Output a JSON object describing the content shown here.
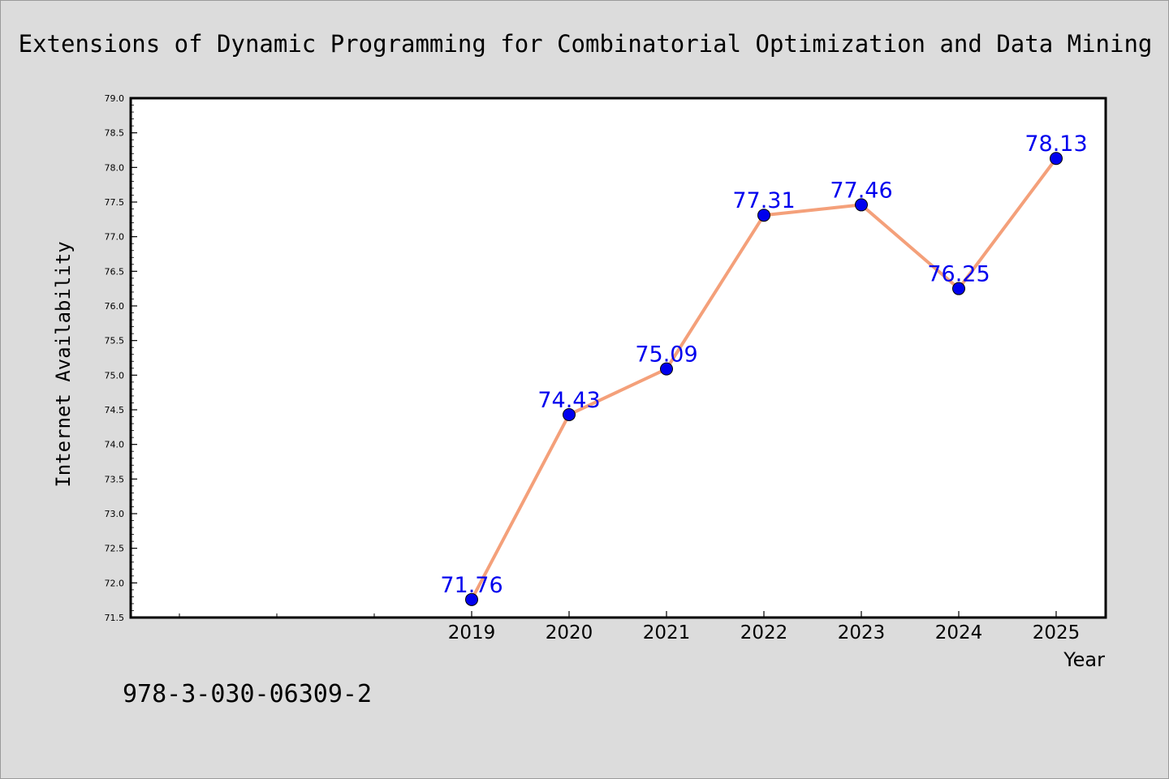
{
  "chart_data": {
    "type": "line",
    "title": "Extensions of Dynamic Programming for Combinatorial Optimization and Data Mining",
    "xlabel": "Year",
    "ylabel": "Internet Availability",
    "x": [
      "2019",
      "2020",
      "2021",
      "2022",
      "2023",
      "2024",
      "2025"
    ],
    "series": [
      {
        "values": [
          71.76,
          74.43,
          75.09,
          77.31,
          77.46,
          76.25,
          78.13
        ],
        "labels": [
          "71.76",
          "74.43",
          "75.09",
          "77.31",
          "77.46",
          "76.25",
          "78.13"
        ],
        "line_color": "#f4a07a",
        "marker_color": "#0000ee"
      }
    ],
    "ylim": [
      71.5,
      79.0
    ],
    "yticks": [
      "71.5",
      "72.0",
      "72.5",
      "73.0",
      "73.5",
      "74.0",
      "74.5",
      "75.0",
      "75.5",
      "76.0",
      "76.5",
      "77.0",
      "77.5",
      "78.0",
      "78.5",
      "79.0"
    ],
    "grid": false,
    "legend": "none"
  },
  "footer": {
    "isbn": "978-3-030-06309-2"
  },
  "colors": {
    "background": "#dcdcdc",
    "plot_background": "#ffffff",
    "label_color": "#0000ee"
  }
}
